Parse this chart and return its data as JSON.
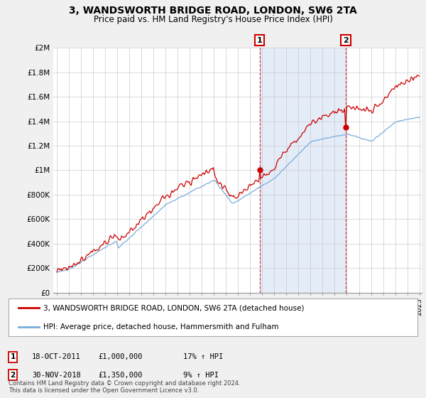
{
  "title": "3, WANDSWORTH BRIDGE ROAD, LONDON, SW6 2TA",
  "subtitle": "Price paid vs. HM Land Registry's House Price Index (HPI)",
  "ylabel_ticks": [
    "£0",
    "£200K",
    "£400K",
    "£600K",
    "£800K",
    "£1M",
    "£1.2M",
    "£1.4M",
    "£1.6M",
    "£1.8M",
    "£2M"
  ],
  "ylabel_values": [
    0,
    200000,
    400000,
    600000,
    800000,
    1000000,
    1200000,
    1400000,
    1600000,
    1800000,
    2000000
  ],
  "ylim": [
    0,
    2000000
  ],
  "fig_bg": "#f0f0f0",
  "plot_bg": "#ffffff",
  "red_color": "#cc0000",
  "blue_color": "#7aacdc",
  "shade_color": "#dce8f5",
  "grid_color": "#cccccc",
  "marker1_value": 1000000,
  "marker1_date": "18-OCT-2011",
  "marker1_price": "£1,000,000",
  "marker1_hpi": "17% ↑ HPI",
  "marker2_value": 1350000,
  "marker2_date": "30-NOV-2018",
  "marker2_price": "£1,350,000",
  "marker2_hpi": "9% ↑ HPI",
  "year_start": 1995,
  "year_end": 2025,
  "marker1_year": 2011.79,
  "marker2_year": 2018.92,
  "legend_line1": "3, WANDSWORTH BRIDGE ROAD, LONDON, SW6 2TA (detached house)",
  "legend_line2": "HPI: Average price, detached house, Hammersmith and Fulham",
  "footer": "Contains HM Land Registry data © Crown copyright and database right 2024.\nThis data is licensed under the Open Government Licence v3.0."
}
